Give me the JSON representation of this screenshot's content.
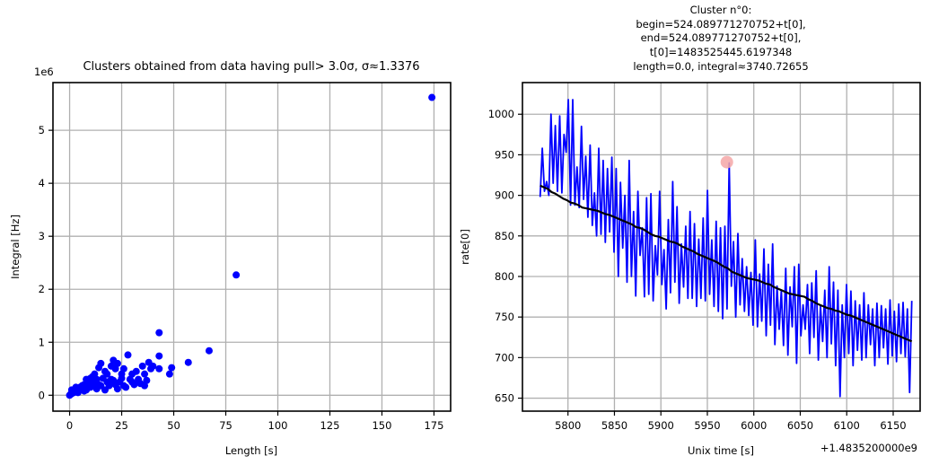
{
  "chart_data": [
    {
      "type": "scatter",
      "title": "Clusters obtained from data having pull> 3.0σ, σ≈1.3376",
      "xlabel": "Length [s]",
      "ylabel": "Integral [Hz]",
      "offset_label": "1e6",
      "xlim": [
        -8,
        183
      ],
      "ylim": [
        -0.3,
        5.9
      ],
      "xticks": [
        0,
        25,
        50,
        75,
        100,
        125,
        150,
        175
      ],
      "yticks": [
        0,
        1,
        2,
        3,
        4,
        5
      ],
      "grid": true,
      "color": "#0000ff",
      "series": [
        {
          "points": [
            [
              174,
              5.62
            ],
            [
              80,
              2.27
            ],
            [
              67,
              0.84
            ],
            [
              43,
              1.18
            ],
            [
              57,
              0.62
            ],
            [
              48,
              0.4
            ],
            [
              49,
              0.52
            ],
            [
              43,
              0.74
            ],
            [
              43,
              0.5
            ],
            [
              38,
              0.62
            ],
            [
              39,
              0.5
            ],
            [
              40,
              0.55
            ],
            [
              36,
              0.4
            ],
            [
              35,
              0.55
            ],
            [
              32,
              0.45
            ],
            [
              30,
              0.4
            ],
            [
              28,
              0.76
            ],
            [
              26,
              0.5
            ],
            [
              25,
              0.32
            ],
            [
              23,
              0.6
            ],
            [
              22,
              0.5
            ],
            [
              21,
              0.66
            ],
            [
              20,
              0.55
            ],
            [
              18,
              0.4
            ],
            [
              17,
              0.45
            ],
            [
              15,
              0.6
            ],
            [
              14,
              0.52
            ],
            [
              13,
              0.3
            ],
            [
              12,
              0.4
            ],
            [
              11,
              0.35
            ],
            [
              10,
              0.32
            ],
            [
              9,
              0.25
            ],
            [
              8,
              0.3
            ],
            [
              7,
              0.2
            ],
            [
              6,
              0.18
            ],
            [
              5,
              0.15
            ],
            [
              4,
              0.12
            ],
            [
              3,
              0.08
            ],
            [
              2,
              0.05
            ],
            [
              1,
              0.03
            ],
            [
              0.5,
              0.02
            ],
            [
              0,
              0.0
            ],
            [
              1,
              0.1
            ],
            [
              3,
              0.15
            ],
            [
              6,
              0.12
            ],
            [
              9,
              0.18
            ],
            [
              12,
              0.22
            ],
            [
              15,
              0.18
            ],
            [
              18,
              0.25
            ],
            [
              20,
              0.3
            ],
            [
              22,
              0.2
            ],
            [
              24,
              0.25
            ],
            [
              26,
              0.18
            ],
            [
              30,
              0.25
            ],
            [
              33,
              0.3
            ],
            [
              37,
              0.28
            ],
            [
              16,
              0.32
            ],
            [
              19,
              0.18
            ],
            [
              21,
              0.28
            ],
            [
              23,
              0.12
            ],
            [
              25,
              0.4
            ],
            [
              27,
              0.15
            ],
            [
              29,
              0.3
            ],
            [
              31,
              0.2
            ],
            [
              34,
              0.22
            ],
            [
              36,
              0.18
            ],
            [
              8,
              0.1
            ],
            [
              10,
              0.15
            ],
            [
              11,
              0.22
            ],
            [
              13,
              0.12
            ],
            [
              14,
              0.2
            ],
            [
              17,
              0.1
            ],
            [
              4,
              0.05
            ],
            [
              7,
              0.08
            ]
          ]
        }
      ]
    },
    {
      "type": "line",
      "title_lines": [
        "Cluster n°0:",
        "begin=524.089771270752+t[0],",
        "end=524.089771270752+t[0],",
        "t[0]=1483525445.6197348",
        "length=0.0, integral≈3740.72655"
      ],
      "xlabel": "Unix time [s]",
      "ylabel": "rate[0]",
      "offset_label": "+1.4835200000e9",
      "xlim": [
        5751,
        6179
      ],
      "ylim": [
        634,
        1039
      ],
      "xticks": [
        5800,
        5850,
        5900,
        5950,
        6000,
        6050,
        6100,
        6150
      ],
      "yticks": [
        650,
        700,
        750,
        800,
        850,
        900,
        950,
        1000
      ],
      "grid": true,
      "x_start": 5770,
      "x_end": 6170,
      "series": [
        {
          "color": "#0000ff",
          "values": [
            898,
            958,
            905,
            917,
            900,
            1000,
            915,
            986,
            905,
            998,
            903,
            975,
            953,
            1018,
            888,
            1018,
            888,
            935,
            885,
            985,
            895,
            948,
            873,
            962,
            863,
            903,
            850,
            958,
            852,
            943,
            842,
            933,
            855,
            947,
            830,
            933,
            800,
            916,
            835,
            900,
            793,
            943,
            800,
            880,
            776,
            905,
            826,
            860,
            775,
            897,
            778,
            902,
            770,
            838,
            802,
            905,
            790,
            833,
            760,
            870,
            780,
            917,
            793,
            886,
            767,
            840,
            787,
            862,
            773,
            880,
            773,
            865,
            763,
            846,
            773,
            872,
            770,
            906,
            778,
            845,
            763,
            868,
            757,
            860,
            748,
            862,
            760,
            940,
            788,
            843,
            750,
            853,
            765,
            822,
            757,
            812,
            752,
            805,
            740,
            845,
            738,
            803,
            745,
            834,
            727,
            815,
            740,
            840,
            716,
            788,
            735,
            783,
            715,
            810,
            703,
            787,
            738,
            812,
            693,
            815,
            727,
            765,
            735,
            790,
            705,
            792,
            725,
            807,
            697,
            764,
            720,
            783,
            700,
            812,
            717,
            793,
            690,
            783,
            652,
            765,
            700,
            790,
            705,
            782,
            690,
            770,
            709,
            765,
            697,
            780,
            700,
            765,
            716,
            760,
            690,
            767,
            700,
            764,
            712,
            760,
            692,
            771,
            702,
            757,
            695,
            766,
            705,
            768,
            701,
            760,
            657,
            770
          ]
        },
        {
          "color": "#000000",
          "values": [
            912,
            910,
            908,
            904,
            902,
            899,
            896,
            894,
            891,
            890,
            888,
            885,
            884,
            883,
            882,
            881,
            879,
            877,
            876,
            874,
            872,
            870,
            868,
            866,
            864,
            861,
            860,
            858,
            855,
            852,
            850,
            849,
            847,
            845,
            843,
            842,
            840,
            837,
            835,
            833,
            831,
            828,
            826,
            824,
            822,
            820,
            818,
            815,
            812,
            810,
            806,
            804,
            802,
            800,
            798,
            797,
            796,
            795,
            793,
            791,
            790,
            787,
            785,
            783,
            781,
            779,
            778,
            777,
            776,
            775,
            772,
            770,
            767,
            765,
            763,
            761,
            760,
            758,
            757,
            755,
            753,
            752,
            750,
            748,
            746,
            744,
            742,
            740,
            738,
            736,
            734,
            732,
            730,
            728,
            726,
            724,
            722,
            720
          ]
        }
      ],
      "marker": {
        "x": 5971,
        "y": 941,
        "color": "#f4a7a7"
      }
    }
  ]
}
